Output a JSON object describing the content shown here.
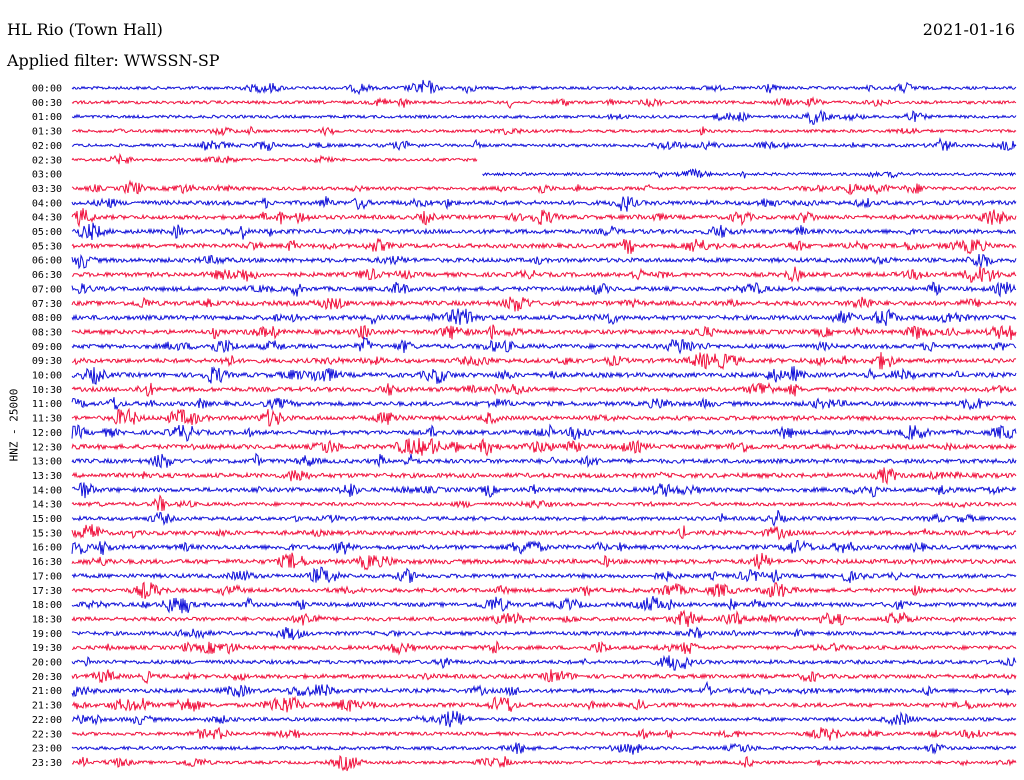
{
  "header": {
    "station": "HL Rio (Town Hall)",
    "date": "2021-01-16",
    "filter": "Applied filter: WWSSN-SP"
  },
  "chart_data": {
    "type": "line",
    "ylabel": "HNZ - 25000",
    "colors": {
      "even": "#1010d8",
      "odd": "#f0103c"
    },
    "gap": {
      "row_end_label": "02:30",
      "row_resume_label": "03:00",
      "resume_fraction": 0.43
    },
    "rows": [
      {
        "label": "00:00",
        "amp": 0.5
      },
      {
        "label": "00:30",
        "amp": 0.5
      },
      {
        "label": "01:00",
        "amp": 0.45
      },
      {
        "label": "01:30",
        "amp": 0.45
      },
      {
        "label": "02:00",
        "amp": 0.5
      },
      {
        "label": "02:30",
        "amp": 0.4
      },
      {
        "label": "03:00",
        "amp": 0.4
      },
      {
        "label": "03:30",
        "amp": 0.6
      },
      {
        "label": "04:00",
        "amp": 1.0
      },
      {
        "label": "04:30",
        "amp": 0.9
      },
      {
        "label": "05:00",
        "amp": 1.0
      },
      {
        "label": "05:30",
        "amp": 1.0
      },
      {
        "label": "06:00",
        "amp": 1.0
      },
      {
        "label": "06:30",
        "amp": 1.0
      },
      {
        "label": "07:00",
        "amp": 1.0
      },
      {
        "label": "07:30",
        "amp": 1.1
      },
      {
        "label": "08:00",
        "amp": 1.1
      },
      {
        "label": "08:30",
        "amp": 1.0
      },
      {
        "label": "09:00",
        "amp": 1.0
      },
      {
        "label": "09:30",
        "amp": 1.0
      },
      {
        "label": "10:00",
        "amp": 1.1
      },
      {
        "label": "10:30",
        "amp": 1.0
      },
      {
        "label": "11:00",
        "amp": 1.0
      },
      {
        "label": "11:30",
        "amp": 1.0
      },
      {
        "label": "12:00",
        "amp": 1.0
      },
      {
        "label": "12:30",
        "amp": 1.1
      },
      {
        "label": "13:00",
        "amp": 1.0
      },
      {
        "label": "13:30",
        "amp": 1.1
      },
      {
        "label": "14:00",
        "amp": 1.0
      },
      {
        "label": "14:30",
        "amp": 0.7
      },
      {
        "label": "15:00",
        "amp": 0.8
      },
      {
        "label": "15:30",
        "amp": 1.0
      },
      {
        "label": "16:00",
        "amp": 1.0
      },
      {
        "label": "16:30",
        "amp": 1.1
      },
      {
        "label": "17:00",
        "amp": 0.9
      },
      {
        "label": "17:30",
        "amp": 0.9
      },
      {
        "label": "18:00",
        "amp": 0.9
      },
      {
        "label": "18:30",
        "amp": 0.8
      },
      {
        "label": "19:00",
        "amp": 0.8
      },
      {
        "label": "19:30",
        "amp": 0.8
      },
      {
        "label": "20:00",
        "amp": 0.8
      },
      {
        "label": "20:30",
        "amp": 0.9
      },
      {
        "label": "21:00",
        "amp": 0.9
      },
      {
        "label": "21:30",
        "amp": 0.9
      },
      {
        "label": "22:00",
        "amp": 0.7
      },
      {
        "label": "22:30",
        "amp": 0.6
      },
      {
        "label": "23:00",
        "amp": 0.6
      },
      {
        "label": "23:30",
        "amp": 0.5
      }
    ]
  }
}
